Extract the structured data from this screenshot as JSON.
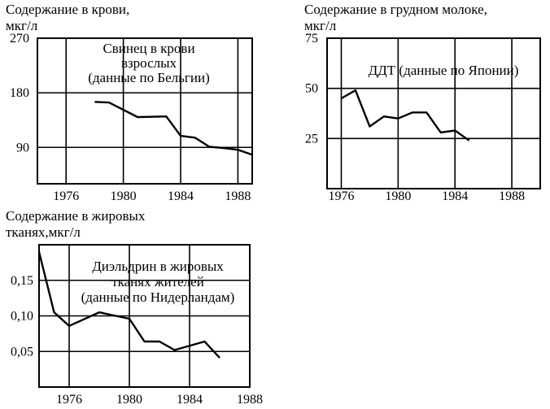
{
  "chart_data": [
    {
      "type": "line",
      "title": "Содержание в крови,",
      "ylabel": "мкг/л",
      "annotation": [
        "Свинец в крови",
        "взрослых",
        "(данные по Бельгии)"
      ],
      "xlim": [
        1974,
        1989
      ],
      "ylim": [
        30,
        270
      ],
      "x_ticks": [
        1976,
        1980,
        1984,
        1988
      ],
      "x_tick_labels": [
        "1976",
        "1980",
        "1984",
        "1988"
      ],
      "y_ticks": [
        270,
        180,
        90
      ],
      "y_tick_labels": [
        "270",
        "180",
        "90"
      ],
      "grid": "vertical at x ticks, horizontal at y ticks",
      "series": [
        {
          "x": [
            1978,
            1979,
            1981,
            1983,
            1984,
            1985,
            1986,
            1987,
            1988,
            1989
          ],
          "values": [
            165,
            164,
            140,
            141,
            109,
            106,
            91,
            89,
            86,
            78
          ]
        }
      ]
    },
    {
      "type": "line",
      "title": "Содержание в грудном молоке,",
      "ylabel": "мкг/л",
      "annotation": [
        "ДДТ (данные по Японии)"
      ],
      "xlim": [
        1975,
        1990
      ],
      "ylim": [
        0,
        75
      ],
      "x_ticks": [
        1976,
        1980,
        1984,
        1988
      ],
      "x_tick_labels": [
        "1976",
        "1980",
        "1984",
        "1988"
      ],
      "y_ticks": [
        75,
        50,
        25
      ],
      "y_tick_labels": [
        "75",
        "50",
        "25"
      ],
      "grid": "vertical at x ticks, horizontal at y ticks",
      "series": [
        {
          "x": [
            1976,
            1977,
            1978,
            1979,
            1980,
            1981,
            1982,
            1983,
            1984,
            1985
          ],
          "values": [
            45,
            49,
            31,
            36,
            35,
            38,
            38,
            28,
            29,
            24
          ]
        }
      ]
    },
    {
      "type": "line",
      "title": "Содержание в жировых",
      "title_line2": "тканях,мкг/л",
      "annotation": [
        "Диэльдрин в жировых",
        "тканях жителей",
        "(данные по Нидерландам)"
      ],
      "xlim": [
        1974,
        1988
      ],
      "ylim": [
        0,
        0.2
      ],
      "x_ticks": [
        1976,
        1980,
        1984,
        1988
      ],
      "x_tick_labels": [
        "1976",
        "1980",
        "1984",
        "1988"
      ],
      "y_ticks": [
        0.15,
        0.1,
        0.05
      ],
      "y_tick_labels": [
        "0,15",
        "0,10",
        "0,05"
      ],
      "grid": "vertical at x ticks, horizontal at y ticks",
      "series": [
        {
          "x": [
            1974,
            1975,
            1976,
            1978,
            1980,
            1981,
            1982,
            1983,
            1985,
            1986
          ],
          "values": [
            0.19,
            0.105,
            0.086,
            0.105,
            0.096,
            0.064,
            0.064,
            0.052,
            0.064,
            0.041
          ]
        }
      ]
    }
  ]
}
